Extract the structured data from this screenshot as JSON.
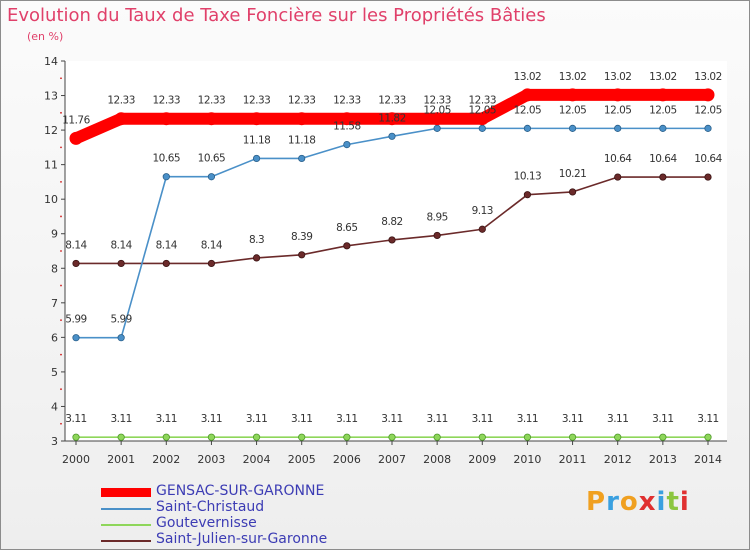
{
  "chart_data": {
    "type": "line",
    "title": "Evolution du Taux de Taxe Foncière sur les Propriétés Bâties",
    "ylabel": "(en %)",
    "xlabel": "",
    "ylim": [
      3,
      14
    ],
    "yticks": [
      "3",
      "4",
      "5",
      "6",
      "7",
      "8",
      "9",
      "10",
      "11",
      "12",
      "13",
      "14"
    ],
    "categories": [
      "2000",
      "2001",
      "2002",
      "2003",
      "2004",
      "2005",
      "2006",
      "2007",
      "2008",
      "2009",
      "2010",
      "2011",
      "2012",
      "2013",
      "2014"
    ],
    "series": [
      {
        "name": "GENSAC-SUR-GARONNE",
        "color": "#ff0000",
        "values": [
          11.76,
          12.33,
          12.33,
          12.33,
          12.33,
          12.33,
          12.33,
          12.33,
          12.33,
          12.33,
          13.02,
          13.02,
          13.02,
          13.02,
          13.02
        ],
        "labels": [
          "11.76",
          "12.33",
          "12.33",
          "12.33",
          "12.33",
          "12.33",
          "12.33",
          "12.33",
          "12.33",
          "12.33",
          "13.02",
          "13.02",
          "13.02",
          "13.02",
          "13.02"
        ]
      },
      {
        "name": "Saint-Christaud",
        "color": "#4a90c8",
        "values": [
          5.99,
          5.99,
          10.65,
          10.65,
          11.18,
          11.18,
          11.58,
          11.82,
          12.05,
          12.05,
          12.05,
          12.05,
          12.05,
          12.05,
          12.05
        ],
        "labels": [
          "5.99",
          "5.99",
          "10.65",
          "10.65",
          "11.18",
          "11.18",
          "11.58",
          "11.82",
          "12.05",
          "12.05",
          "12.05",
          "12.05",
          "12.05",
          "12.05",
          "12.05"
        ]
      },
      {
        "name": "Goutevernisse",
        "color": "#8ed65a",
        "values": [
          3.11,
          3.11,
          3.11,
          3.11,
          3.11,
          3.11,
          3.11,
          3.11,
          3.11,
          3.11,
          3.11,
          3.11,
          3.11,
          3.11,
          3.11
        ],
        "labels": [
          "3.11",
          "3.11",
          "3.11",
          "3.11",
          "3.11",
          "3.11",
          "3.11",
          "3.11",
          "3.11",
          "3.11",
          "3.11",
          "3.11",
          "3.11",
          "3.11",
          "3.11"
        ]
      },
      {
        "name": "Saint-Julien-sur-Garonne",
        "color": "#6b2a2a",
        "values": [
          8.14,
          8.14,
          8.14,
          8.14,
          8.3,
          8.39,
          8.65,
          8.82,
          8.95,
          9.13,
          10.13,
          10.21,
          10.64,
          10.64,
          10.64
        ],
        "labels": [
          "8.14",
          "8.14",
          "8.14",
          "8.14",
          "8.3",
          "8.39",
          "8.65",
          "8.82",
          "8.95",
          "9.13",
          "10.13",
          "10.21",
          "10.64",
          "10.64",
          "10.64"
        ]
      }
    ],
    "legend_position": "bottom-left"
  },
  "logo": {
    "letters": [
      "P",
      "r",
      "o",
      "x",
      "i",
      "t",
      "i"
    ],
    "colors": [
      "#f0a020",
      "#3aa0e0",
      "#f0a020",
      "#e03030",
      "#3aa0e0",
      "#8cc63f",
      "#e03030"
    ]
  }
}
